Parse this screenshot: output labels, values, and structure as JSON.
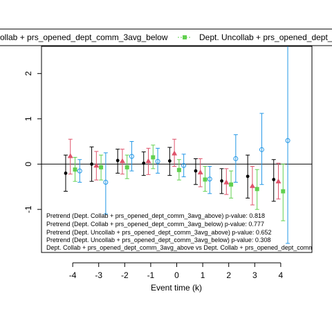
{
  "chart_data": {
    "type": "scatter",
    "title": "",
    "xlabel": "Event time (k)",
    "ylabel": "",
    "x_ticks": [
      -4,
      -3,
      -2,
      -1,
      0,
      1,
      2,
      3,
      4
    ],
    "y_ticks": [
      -1,
      0,
      1,
      2
    ],
    "xlim": [
      -5.2,
      5.2
    ],
    "ylim": [
      -1.95,
      2.6
    ],
    "zero_line": 0,
    "grid": false,
    "legend_position": "top",
    "legend_items": [
      "ollab + prs_opened_dept_comm_3avg_below",
      "Dept. Uncollab + prs_opened_dept_"
    ],
    "series": [
      {
        "color": "#000000",
        "marker": "circle-filled",
        "offset": -0.27,
        "x": [
          -4,
          -3,
          -2,
          -1,
          0,
          1,
          2,
          3,
          4
        ],
        "y": [
          -0.2,
          0.0,
          0.08,
          0.02,
          0.07,
          -0.15,
          -0.37,
          -0.27,
          -0.34
        ],
        "lo": [
          -0.6,
          -0.38,
          -0.2,
          -0.25,
          -0.25,
          -0.45,
          -0.65,
          -0.75,
          -0.82
        ],
        "hi": [
          0.2,
          0.38,
          0.33,
          0.27,
          0.37,
          0.12,
          -0.1,
          0.2,
          0.1
        ]
      },
      {
        "color": "#DF536B",
        "marker": "triangle",
        "offset": -0.09,
        "x": [
          -4,
          -3,
          -2,
          -1,
          0,
          1,
          2,
          3,
          4
        ],
        "y": [
          0.18,
          -0.03,
          0.07,
          0.07,
          0.24,
          -0.18,
          -0.4,
          -0.48,
          -0.38
        ],
        "lo": [
          -0.22,
          -0.35,
          -0.22,
          -0.23,
          -0.05,
          -0.5,
          -0.67,
          -0.9,
          -0.77
        ],
        "hi": [
          0.55,
          0.28,
          0.33,
          0.35,
          0.55,
          0.12,
          -0.1,
          -0.05,
          0.02
        ]
      },
      {
        "color": "#61D04F",
        "marker": "square",
        "offset": 0.09,
        "x": [
          -4,
          -3,
          -2,
          -1,
          0,
          1,
          2,
          3,
          4
        ],
        "y": [
          -0.12,
          -0.07,
          -0.07,
          0.15,
          -0.13,
          -0.34,
          -0.45,
          -0.55,
          -0.6
        ],
        "lo": [
          -0.38,
          -0.35,
          -0.32,
          -0.1,
          -0.35,
          -0.6,
          -0.75,
          -1.0,
          -1.25
        ],
        "hi": [
          0.15,
          0.2,
          0.2,
          0.42,
          0.1,
          -0.05,
          -0.15,
          -0.12,
          0.0
        ]
      },
      {
        "color": "#2297E6",
        "marker": "circle-open",
        "offset": 0.27,
        "x": [
          -4,
          -3,
          -2,
          -1,
          0,
          1,
          2,
          3,
          4
        ],
        "y": [
          -0.15,
          -0.4,
          0.17,
          0.06,
          -0.03,
          -0.33,
          0.12,
          0.32,
          0.52
        ],
        "lo": [
          -0.4,
          -1.1,
          -0.15,
          -0.2,
          -0.28,
          -0.65,
          -0.4,
          -0.45,
          -1.75
        ],
        "hi": [
          0.1,
          0.25,
          0.5,
          0.35,
          0.22,
          -0.05,
          0.65,
          1.12,
          2.8
        ]
      }
    ],
    "annotations": [
      "Pretrend (Dept. Collab + prs_opened_dept_comm_3avg_above) p-value: 0.818",
      "Pretrend (Dept. Collab + prs_opened_dept_comm_3avg_below) p-value: 0.777",
      "Pretrend (Dept. Uncollab + prs_opened_dept_comm_3avg_above) p-value: 0.652",
      "Pretrend (Dept. Uncollab + prs_opened_dept_comm_3avg_below) p-value: 0.308",
      "Dept. Collab + prs_opened_dept_comm_3avg_above vs Dept. Collab + prs_opened_dept_comm_"
    ]
  }
}
